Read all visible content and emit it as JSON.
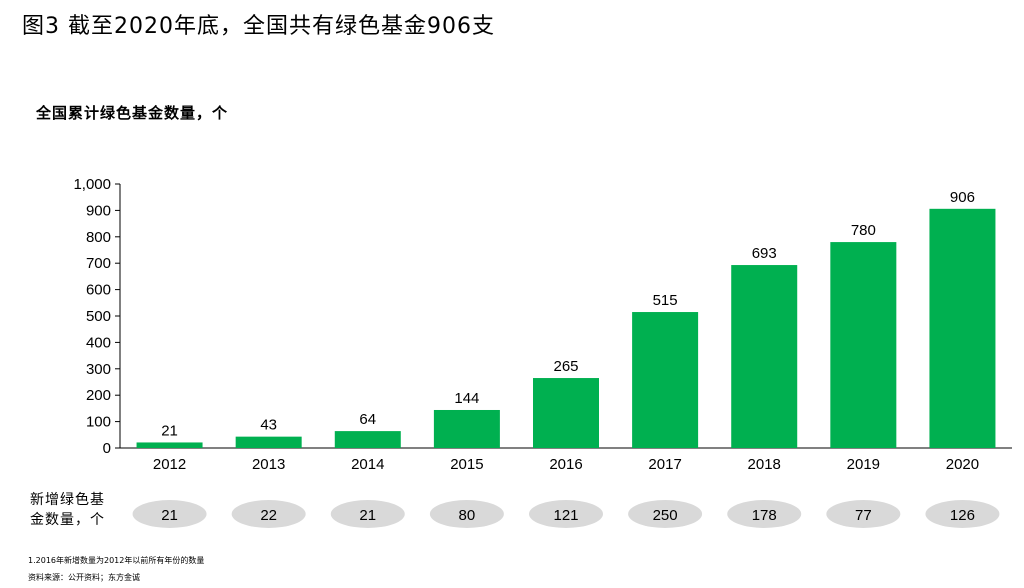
{
  "figure_title": "图3 截至2020年底，全国共有绿色基金906支",
  "subtitle": "全国累计绿色基金数量，个",
  "new_funds_label_line1": "新增绿色基",
  "new_funds_label_line2": "金数量，个",
  "footnote": "1.2016年新增数量为2012年以前所有年份的数量",
  "source": "资料来源：公开资料；东方金诚",
  "colors": {
    "bar": "#00B050",
    "pill": "#D9D9D9",
    "axis": "#000000"
  },
  "chart_data": {
    "type": "bar",
    "title": "全国累计绿色基金数量，个",
    "categories": [
      "2012",
      "2013",
      "2014",
      "2015",
      "2016",
      "2017",
      "2018",
      "2019",
      "2020"
    ],
    "values": [
      21,
      43,
      64,
      144,
      265,
      515,
      693,
      780,
      906
    ],
    "value_labels": [
      "21",
      "43",
      "64",
      "144",
      "265",
      "515",
      "693",
      "780",
      "906"
    ],
    "y_ticks": [
      0,
      100,
      200,
      300,
      400,
      500,
      600,
      700,
      800,
      900,
      1000
    ],
    "y_tick_labels": [
      "0",
      "100",
      "200",
      "300",
      "400",
      "500",
      "600",
      "700",
      "800",
      "900",
      "1,000"
    ],
    "ylim": [
      0,
      1000
    ],
    "xlabel": "",
    "ylabel": "",
    "grid": false,
    "legend": "none",
    "new_funds": {
      "label": "新增绿色基金数量，个",
      "values": [
        21,
        22,
        21,
        80,
        121,
        250,
        178,
        77,
        126
      ],
      "value_labels": [
        "21",
        "22",
        "21",
        "80",
        "121",
        "250",
        "178",
        "77",
        "126"
      ]
    }
  }
}
